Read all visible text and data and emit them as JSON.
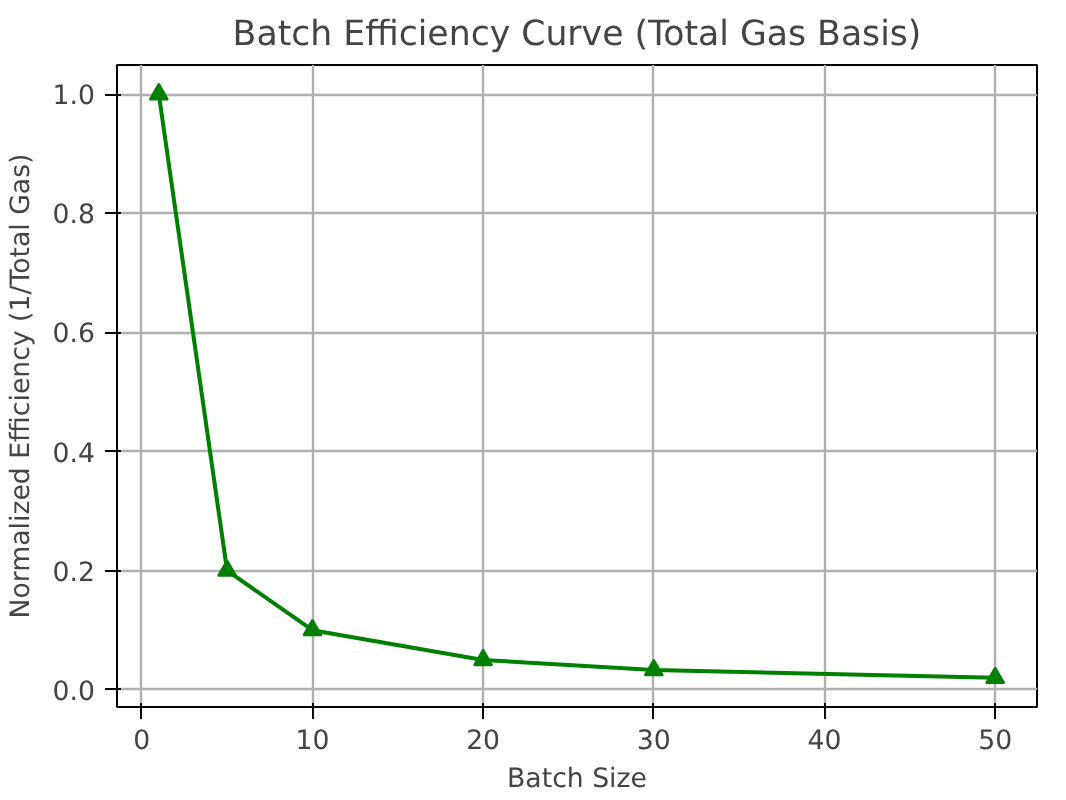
{
  "chart_data": {
    "type": "line",
    "title": "Batch Efficiency Curve (Total Gas Basis)",
    "xlabel": "Batch Size",
    "ylabel": "Normalized Efficiency (1/Total Gas)",
    "x": [
      1,
      5,
      10,
      20,
      30,
      50
    ],
    "series": [
      {
        "color": "#008000",
        "values": [
          1.0,
          0.2,
          0.1,
          0.05,
          0.033,
          0.02
        ]
      }
    ],
    "xlim": [
      -1.45,
      52.45
    ],
    "ylim": [
      -0.029,
      1.049
    ],
    "xticks": [
      0,
      10,
      20,
      30,
      40,
      50
    ],
    "yticks": [
      {
        "value": 0,
        "label": "0.0"
      },
      {
        "value": 0.2,
        "label": "0.2"
      },
      {
        "value": 0.4,
        "label": "0.4"
      },
      {
        "value": 0.6,
        "label": "0.6"
      },
      {
        "value": 0.8,
        "label": "0.8"
      },
      {
        "value": 1.0,
        "label": "1.0"
      }
    ],
    "grid": true,
    "marker": "triangle",
    "line_style": "solid"
  }
}
